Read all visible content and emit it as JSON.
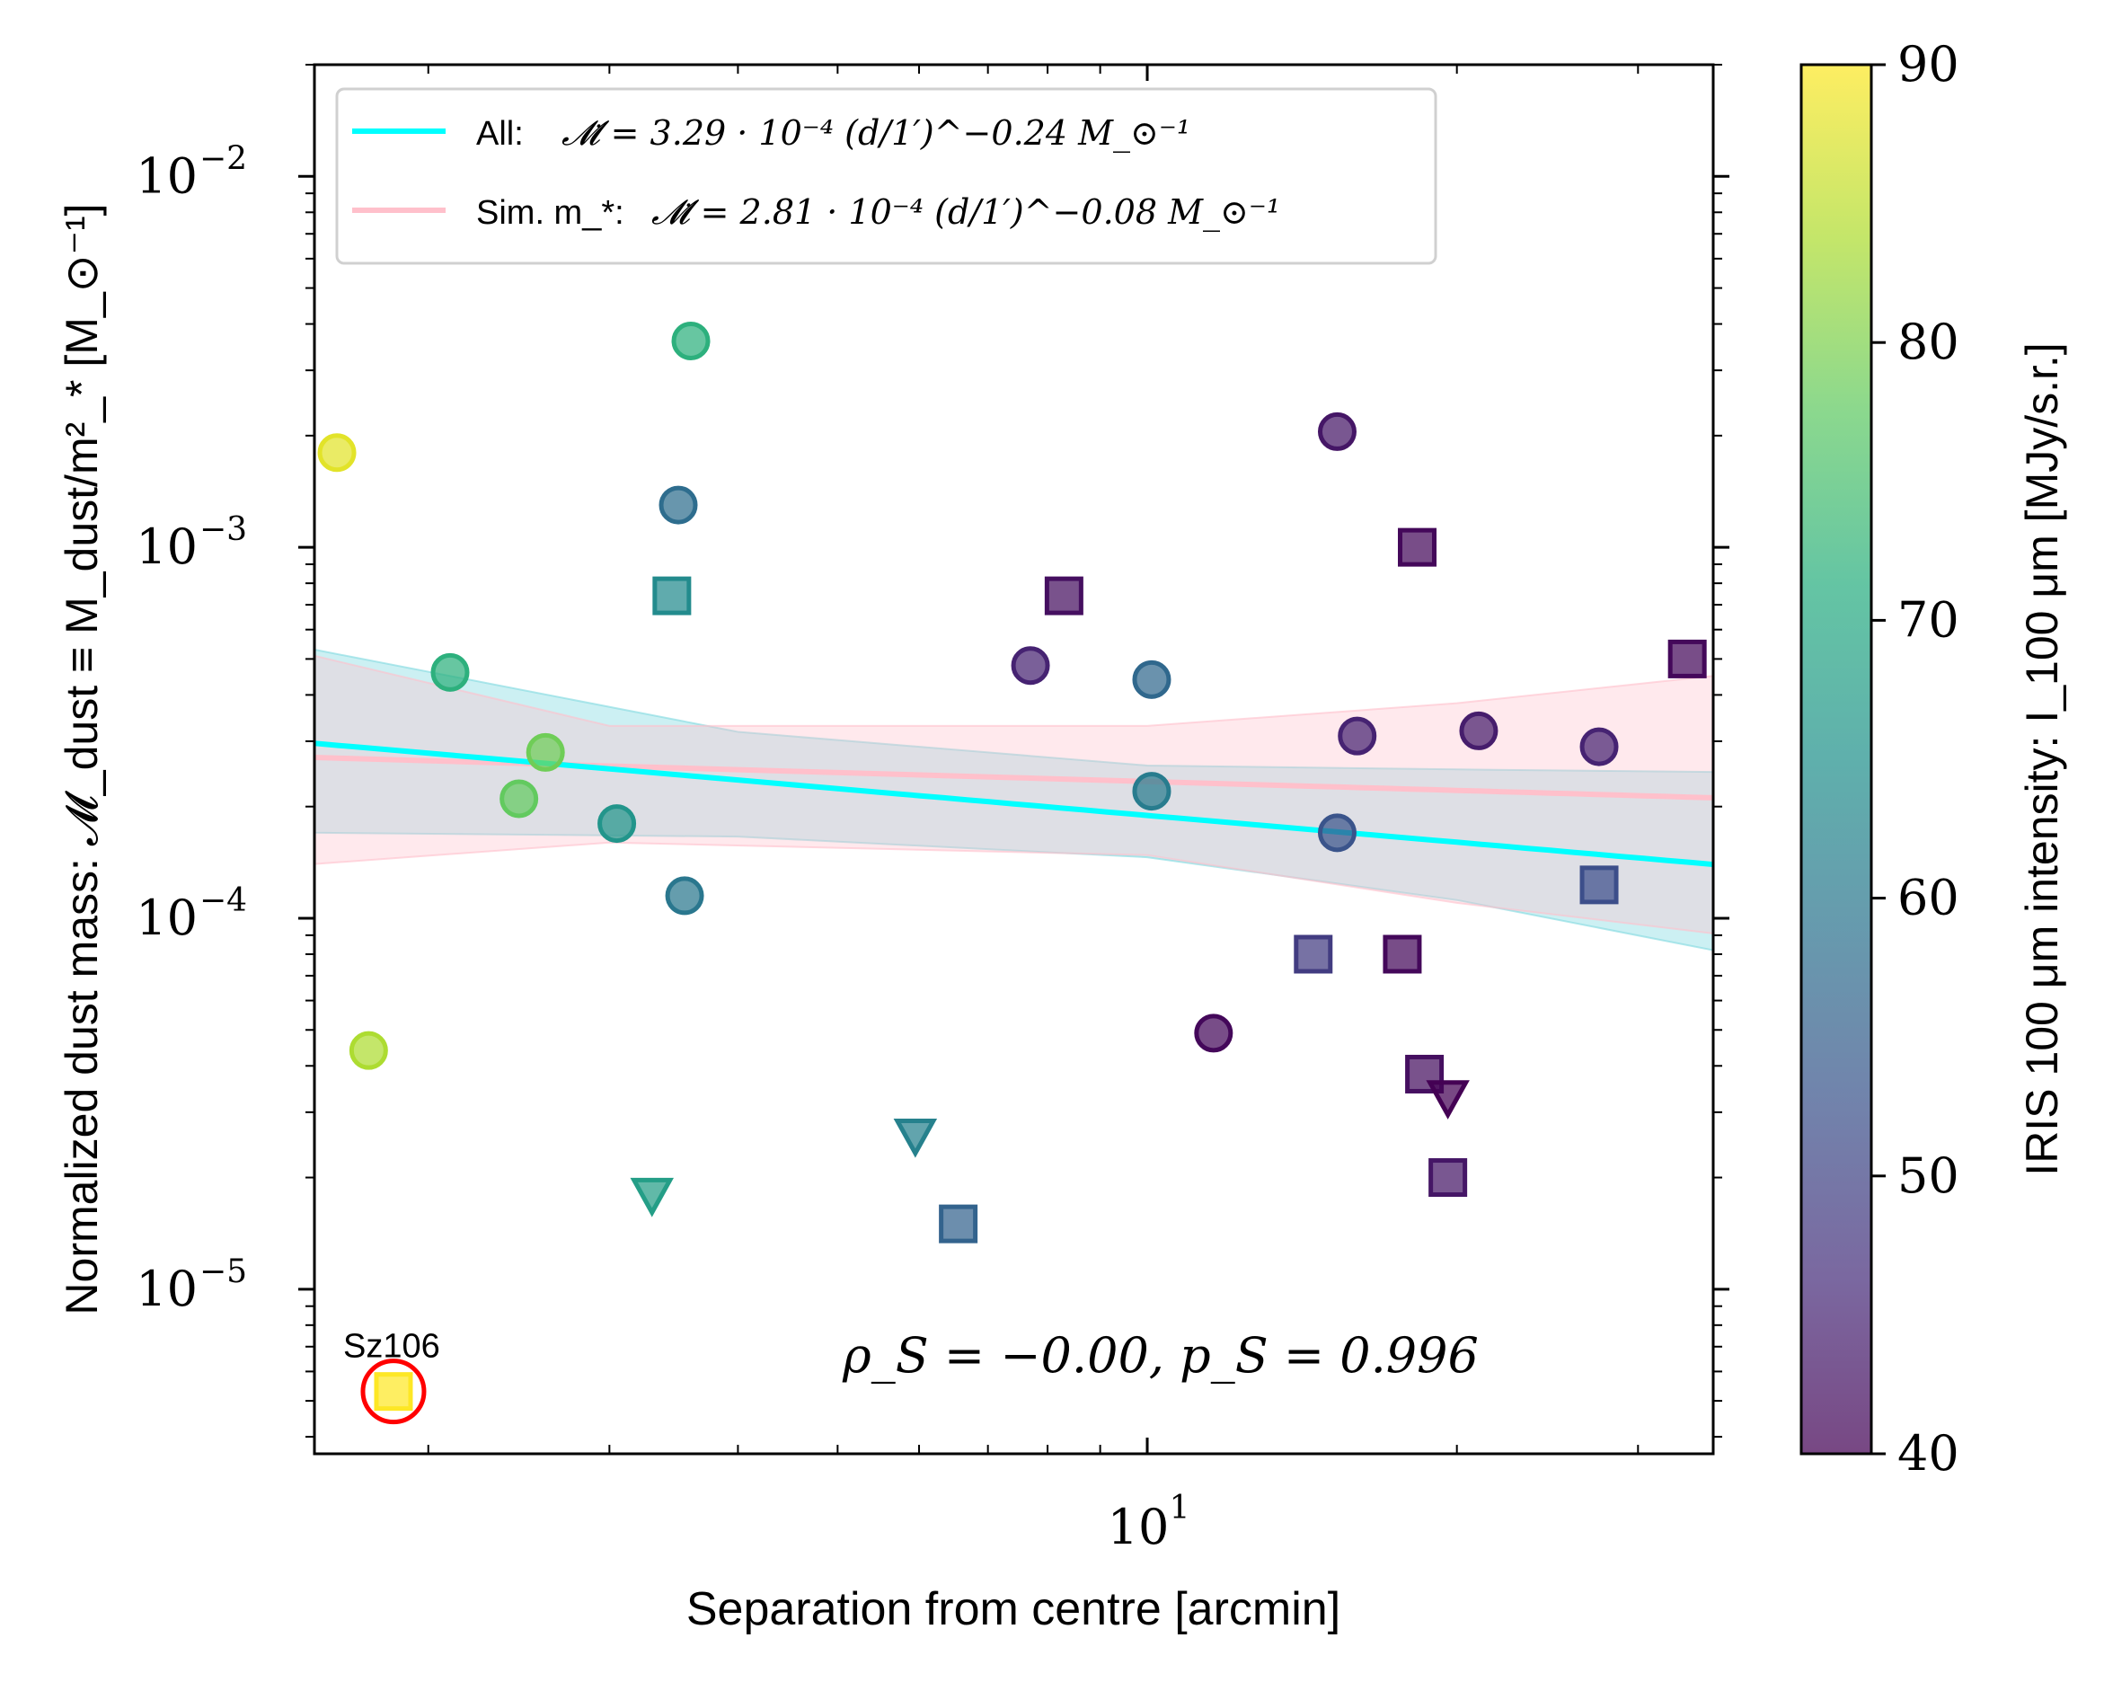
{
  "chart_data": {
    "type": "scatter",
    "xlabel": "Separation from centre [arcmin]",
    "ylabel": "Normalized dust mass: 𝓜_dust ≡ M_dust/m²_* [M_⊙⁻¹]",
    "x_scale": "log",
    "y_scale": "log",
    "xlim": [
      1.55,
      35.5
    ],
    "ylim": [
      3.6e-06,
      0.02
    ],
    "x_tick_labels": [
      {
        "value": 10,
        "label": "10",
        "sup": "1"
      }
    ],
    "y_tick_labels": [
      {
        "value": 1e-05,
        "label": "10",
        "sup": "−5"
      },
      {
        "value": 0.0001,
        "label": "10",
        "sup": "−4"
      },
      {
        "value": 0.001,
        "label": "10",
        "sup": "−3"
      },
      {
        "value": 0.01,
        "label": "10",
        "sup": "−2"
      }
    ],
    "colorbar": {
      "label": "IRIS 100 μm intensity: I_100 μm [MJy/s.r.]",
      "min": 40,
      "max": 90,
      "ticks": [
        "40",
        "50",
        "60",
        "70",
        "80",
        "90"
      ],
      "colormap": "viridis"
    },
    "legend": {
      "placement": "upper-left",
      "entries": [
        {
          "name": "All:",
          "formula": "𝓜̇ = 3.29 · 10⁻⁴ (d/1′)^−0.24 M_⊙⁻¹",
          "color": "#00ffff"
        },
        {
          "name": "Sim. m_*:",
          "formula": "𝓜̇ = 2.81 · 10⁻⁴ (d/1′)^−0.08 M_⊙⁻¹",
          "color": "#ffc0cb"
        }
      ]
    },
    "fits": [
      {
        "name": "All",
        "amplitude": 0.000329,
        "slope": -0.24,
        "color": "#00ffff",
        "band_color": "#7fd9e0",
        "band_lower": [
          [
            1.55,
            0.00017
          ],
          [
            4.0,
            0.000166
          ],
          [
            10,
            0.000146
          ],
          [
            20,
            0.000112
          ],
          [
            35.5,
            8.2e-05
          ]
        ],
        "band_upper": [
          [
            1.55,
            0.00053
          ],
          [
            4.0,
            0.000318
          ],
          [
            10,
            0.000258
          ],
          [
            20,
            0.000252
          ],
          [
            35.5,
            0.000248
          ]
        ]
      },
      {
        "name": "Sim. m_*",
        "amplitude": 0.000281,
        "slope": -0.08,
        "color": "#ffc0cb",
        "band_color": "#ffc0cb",
        "band_lower": [
          [
            1.55,
            0.00014
          ],
          [
            3.0,
            0.00016
          ],
          [
            10,
            0.000148
          ],
          [
            20,
            0.00011
          ],
          [
            35.5,
            9.1e-05
          ]
        ],
        "band_upper": [
          [
            1.55,
            0.00051
          ],
          [
            3.0,
            0.00033
          ],
          [
            10,
            0.00033
          ],
          [
            20,
            0.00038
          ],
          [
            35.5,
            0.00045
          ]
        ]
      }
    ],
    "points": [
      {
        "x": 1.63,
        "y": 0.0018,
        "marker": "circle",
        "i100": 88
      },
      {
        "x": 1.75,
        "y": 4.4e-05,
        "marker": "circle",
        "i100": 84
      },
      {
        "x": 2.1,
        "y": 0.00046,
        "marker": "circle",
        "i100": 72
      },
      {
        "x": 2.6,
        "y": 0.00028,
        "marker": "circle",
        "i100": 79
      },
      {
        "x": 2.45,
        "y": 0.00021,
        "marker": "circle",
        "i100": 78
      },
      {
        "x": 3.05,
        "y": 0.00018,
        "marker": "circle",
        "i100": 66
      },
      {
        "x": 3.6,
        "y": 0.0036,
        "marker": "circle",
        "i100": 72
      },
      {
        "x": 3.5,
        "y": 0.0013,
        "marker": "circle",
        "i100": 58
      },
      {
        "x": 3.55,
        "y": 0.000115,
        "marker": "circle",
        "i100": 60
      },
      {
        "x": 3.45,
        "y": 0.00074,
        "marker": "square",
        "i100": 64
      },
      {
        "x": 3.3,
        "y": 1.8e-05,
        "marker": "triangle-down",
        "i100": 68
      },
      {
        "x": 5.95,
        "y": 2.6e-05,
        "marker": "triangle-down",
        "i100": 62
      },
      {
        "x": 6.55,
        "y": 1.5e-05,
        "marker": "square",
        "i100": 56
      },
      {
        "x": 7.7,
        "y": 0.00048,
        "marker": "circle",
        "i100": 45
      },
      {
        "x": 8.3,
        "y": 0.00074,
        "marker": "square",
        "i100": 42
      },
      {
        "x": 10.1,
        "y": 0.00044,
        "marker": "circle",
        "i100": 57
      },
      {
        "x": 10.1,
        "y": 0.00022,
        "marker": "circle",
        "i100": 61
      },
      {
        "x": 11.6,
        "y": 4.9e-05,
        "marker": "circle",
        "i100": 41
      },
      {
        "x": 14.5,
        "y": 8e-05,
        "marker": "square",
        "i100": 49
      },
      {
        "x": 15.3,
        "y": 0.00205,
        "marker": "circle",
        "i100": 43
      },
      {
        "x": 15.3,
        "y": 0.00017,
        "marker": "circle",
        "i100": 53
      },
      {
        "x": 16.0,
        "y": 0.00031,
        "marker": "circle",
        "i100": 45
      },
      {
        "x": 17.7,
        "y": 8e-05,
        "marker": "square",
        "i100": 41
      },
      {
        "x": 18.3,
        "y": 0.001,
        "marker": "square",
        "i100": 41
      },
      {
        "x": 18.6,
        "y": 3.8e-05,
        "marker": "square",
        "i100": 42
      },
      {
        "x": 19.6,
        "y": 3.3e-05,
        "marker": "triangle-down",
        "i100": 40
      },
      {
        "x": 19.6,
        "y": 2e-05,
        "marker": "square",
        "i100": 43
      },
      {
        "x": 21.0,
        "y": 0.00032,
        "marker": "circle",
        "i100": 44
      },
      {
        "x": 27.5,
        "y": 0.00029,
        "marker": "circle",
        "i100": 45
      },
      {
        "x": 27.5,
        "y": 0.000123,
        "marker": "square",
        "i100": 52
      },
      {
        "x": 33.5,
        "y": 0.0005,
        "marker": "square",
        "i100": 41
      },
      {
        "x": 1.85,
        "y": 5.3e-06,
        "marker": "square",
        "i100": 90,
        "label": "Sz106",
        "highlight": "#ff0000"
      }
    ],
    "annotation": {
      "text": "ρ_S = −0.00, p_S = 0.996"
    }
  }
}
